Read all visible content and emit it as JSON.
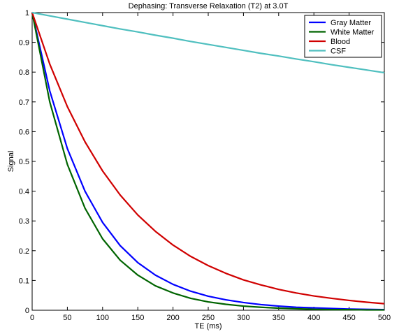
{
  "chart_data": {
    "type": "line",
    "title": "Dephasing: Transverse Relaxation (T2) at 3.0T",
    "xlabel": "TE (ms)",
    "ylabel": "Signal",
    "xlim": [
      0,
      500
    ],
    "ylim": [
      0,
      1
    ],
    "xticks": [
      "0",
      "50",
      "100",
      "150",
      "200",
      "250",
      "300",
      "350",
      "400",
      "450",
      "500"
    ],
    "yticks": [
      "0",
      "0.1",
      "0.2",
      "0.3",
      "0.4",
      "0.5",
      "0.6",
      "0.7",
      "0.8",
      "0.9",
      "1"
    ],
    "grid": false,
    "legend_position": "top-right",
    "x": [
      0,
      25,
      50,
      75,
      100,
      125,
      150,
      175,
      200,
      225,
      250,
      275,
      300,
      325,
      350,
      375,
      400,
      425,
      450,
      475,
      500
    ],
    "series": [
      {
        "name": "Gray Matter",
        "color": "#0000ff",
        "values": [
          1.0,
          0.737,
          0.543,
          0.4,
          0.295,
          0.217,
          0.16,
          0.118,
          0.087,
          0.064,
          0.047,
          0.035,
          0.026,
          0.019,
          0.014,
          0.01,
          0.008,
          0.006,
          0.004,
          0.003,
          0.002
        ]
      },
      {
        "name": "White Matter",
        "color": "#006400",
        "values": [
          1.0,
          0.7,
          0.49,
          0.343,
          0.24,
          0.168,
          0.118,
          0.082,
          0.058,
          0.04,
          0.028,
          0.02,
          0.014,
          0.01,
          0.007,
          0.005,
          0.003,
          0.002,
          0.002,
          0.001,
          0.001
        ]
      },
      {
        "name": "Blood",
        "color": "#d00000",
        "values": [
          1.0,
          0.827,
          0.684,
          0.566,
          0.468,
          0.387,
          0.32,
          0.265,
          0.219,
          0.181,
          0.15,
          0.124,
          0.102,
          0.085,
          0.07,
          0.058,
          0.048,
          0.04,
          0.033,
          0.027,
          0.022
        ]
      },
      {
        "name": "CSF",
        "color": "#4fbfbf",
        "values": [
          1.0,
          0.989,
          0.978,
          0.967,
          0.956,
          0.945,
          0.935,
          0.924,
          0.914,
          0.903,
          0.893,
          0.883,
          0.873,
          0.863,
          0.854,
          0.844,
          0.835,
          0.825,
          0.816,
          0.807,
          0.798
        ]
      }
    ]
  }
}
